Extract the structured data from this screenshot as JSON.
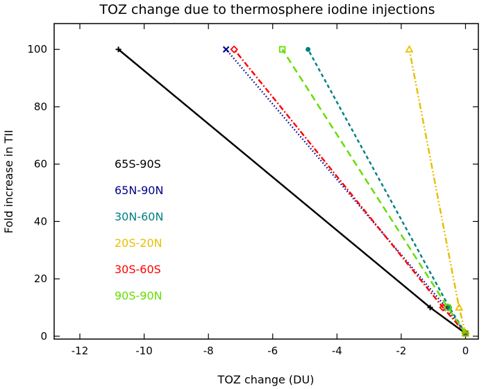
{
  "chart_data": {
    "type": "line",
    "title": "TOZ change due to thermosphere iodine injections",
    "xlabel": "TOZ change (DU)",
    "ylabel": "Fold increase in TII",
    "xlim": [
      -12.8,
      0.4
    ],
    "ylim": [
      -1,
      109
    ],
    "xticks": [
      -12,
      -10,
      -8,
      -6,
      -4,
      -2,
      0
    ],
    "yticks": [
      0,
      20,
      40,
      60,
      80,
      100
    ],
    "grid": false,
    "legend_placement": "left-middle",
    "series": [
      {
        "name": "65S-90S",
        "color": "#000000",
        "marker": "plus",
        "dash": "solid",
        "x": [
          0,
          -1.1,
          -10.8
        ],
        "y": [
          1,
          10,
          100
        ]
      },
      {
        "name": "65N-90N",
        "color": "#00008b",
        "marker": "x",
        "dash": "dotted",
        "x": [
          0,
          -0.6,
          -7.45
        ],
        "y": [
          1,
          10,
          100
        ]
      },
      {
        "name": "30N-60N",
        "color": "#008080",
        "marker": "dot",
        "dash": "dashed",
        "x": [
          0,
          -0.5,
          -4.9
        ],
        "y": [
          1,
          10,
          100
        ]
      },
      {
        "name": "20S-20N",
        "color": "#e6c000",
        "marker": "triangle",
        "dash": "dashdotdot",
        "x": [
          0,
          -0.2,
          -1.75
        ],
        "y": [
          1,
          10,
          100
        ]
      },
      {
        "name": "30S-60S",
        "color": "#ff0000",
        "marker": "diamond",
        "dash": "dashdot",
        "x": [
          0,
          -0.7,
          -7.2
        ],
        "y": [
          1,
          10,
          100
        ]
      },
      {
        "name": "90S-90N",
        "color": "#66dd00",
        "marker": "square",
        "dash": "longdash",
        "x": [
          0,
          -0.55,
          -5.7
        ],
        "y": [
          1,
          10,
          100
        ]
      }
    ]
  }
}
